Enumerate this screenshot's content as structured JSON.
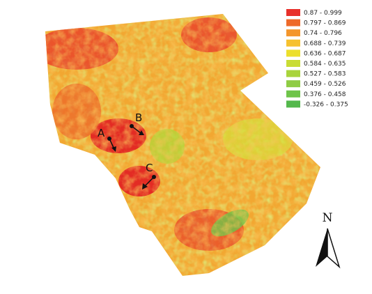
{
  "legend": {
    "items": [
      {
        "label": "0.87 - 0.999",
        "color": "#e8302a"
      },
      {
        "label": "0.797 - 0.869",
        "color": "#ee6a2a"
      },
      {
        "label": "0.74 - 0.796",
        "color": "#f4962c"
      },
      {
        "label": "0.688 - 0.739",
        "color": "#f6c12e"
      },
      {
        "label": "0.636 - 0.687",
        "color": "#ecdf2c"
      },
      {
        "label": "0.584 - 0.635",
        "color": "#c9dc34"
      },
      {
        "label": "0.527 - 0.583",
        "color": "#a9d43c"
      },
      {
        "label": "0.459 - 0.526",
        "color": "#8fcc44"
      },
      {
        "label": "0.376 - 0.458",
        "color": "#6fc44a"
      },
      {
        "label": "-0.326 - 0.375",
        "color": "#54b84c"
      }
    ]
  },
  "markers": [
    {
      "label": "A"
    },
    {
      "label": "B"
    },
    {
      "label": "C"
    }
  ],
  "north_arrow": {
    "label": "N"
  }
}
